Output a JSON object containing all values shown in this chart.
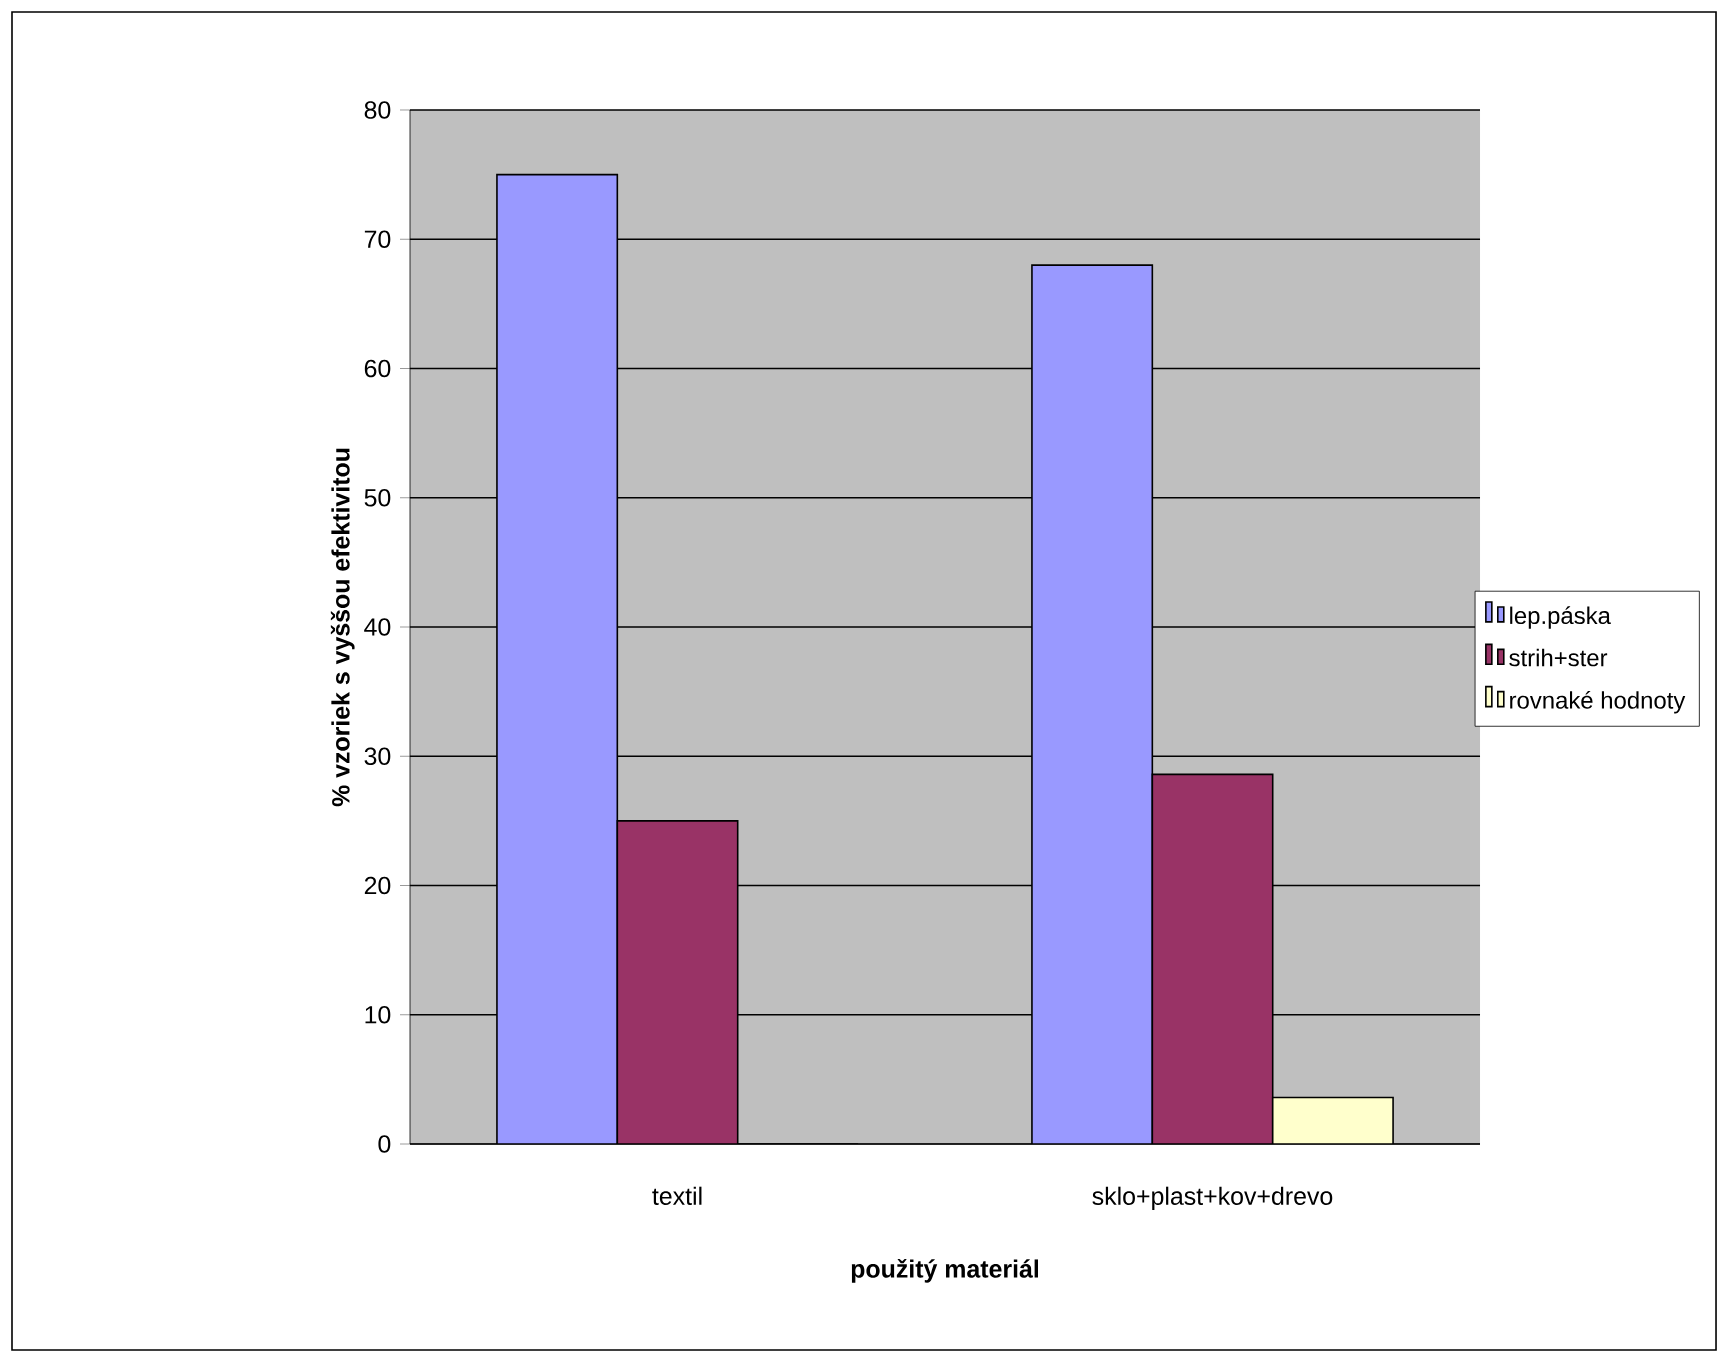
{
  "chart_data": {
    "type": "bar",
    "xlabel": "použitý materiál",
    "ylabel": "% vzoriek s vyššou efektivitou",
    "categories": [
      "textil",
      "sklo+plast+kov+drevo"
    ],
    "series": [
      {
        "name": "lep.páska",
        "color": "#9999ff",
        "values": [
          75,
          68
        ]
      },
      {
        "name": "strih+ster",
        "color": "#993366",
        "values": [
          25,
          28.6
        ]
      },
      {
        "name": "rovnaké hodnoty",
        "color": "#ffffcc",
        "values": [
          0,
          3.6
        ]
      }
    ],
    "ylim": [
      0,
      80
    ],
    "yticks": [
      0,
      10,
      20,
      30,
      40,
      50,
      60,
      70,
      80
    ],
    "grid": "y",
    "legend": "right"
  }
}
